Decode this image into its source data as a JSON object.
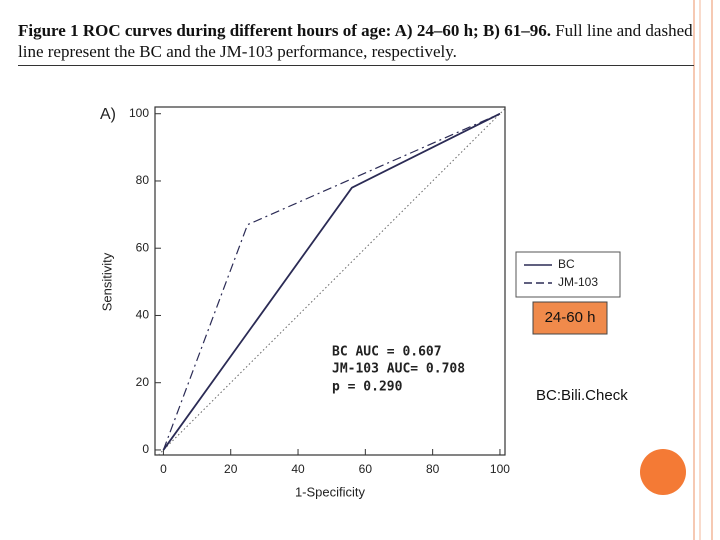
{
  "caption": {
    "bold": "Figure 1 ROC curves during different hours of age: A) 24–60 h; B) 61–96.",
    "text": "Full line and dashed line represent the BC and the JM-103 performance, respectively."
  },
  "chart_data": {
    "type": "line",
    "panel_label": "A)",
    "xlabel": "1-Specificity",
    "ylabel": "Sensitivity",
    "series": [
      {
        "name": "BC",
        "color": "#2b2b55",
        "dash": "solid",
        "x": [
          0,
          56,
          100
        ],
        "values": [
          0,
          78,
          100
        ]
      },
      {
        "name": "JM-103",
        "color": "#2b2b55",
        "dash": "dashed",
        "x": [
          0,
          25,
          100
        ],
        "values": [
          0,
          67,
          100
        ]
      }
    ],
    "xlim": [
      -2.5,
      101.5
    ],
    "ylim": [
      -1.5,
      102
    ],
    "xticks": [
      0,
      20,
      40,
      60,
      80,
      100
    ],
    "yticks": [
      0,
      20,
      40,
      60,
      80,
      100
    ],
    "annotations": [
      "BC AUC = 0.607",
      "JM-103 AUC= 0.708",
      "p = 0.290"
    ],
    "period_label": "24-60 h",
    "footnote": "BC:Bili.Check"
  }
}
